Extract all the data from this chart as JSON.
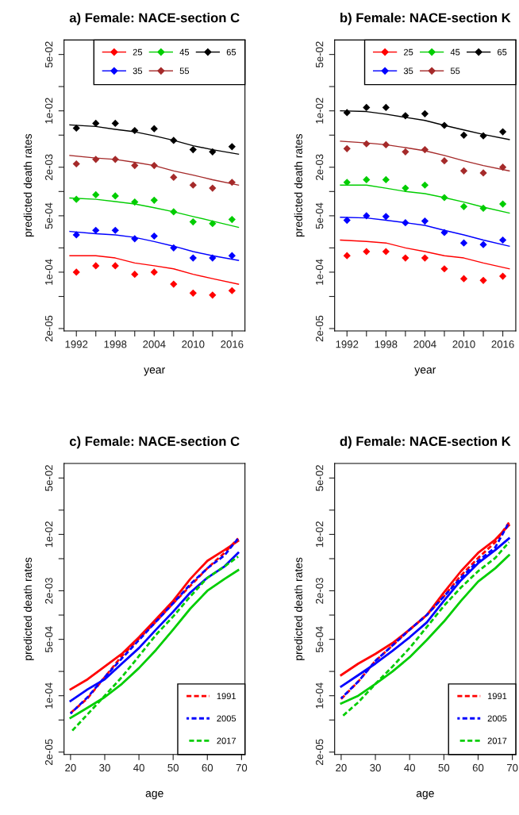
{
  "chart_data": [
    {
      "type": "line",
      "title": "a) Female: NACE-section C",
      "xlabel": "year",
      "ylabel": "predicted death rates",
      "log": "y",
      "legend": "top right",
      "xlim": [
        1990.1,
        2018
      ],
      "ylim": [
        1.87e-05,
        0.0757
      ],
      "xticks": [
        1992,
        {
          "value": 1995,
          "label": null
        },
        1998,
        {
          "value": 2001,
          "label": null
        },
        2004,
        {
          "value": 2007,
          "label": null
        },
        2010,
        {
          "value": 2013,
          "label": null
        },
        2016
      ],
      "yticks": [
        {
          "value": 0.05,
          "label": "5e-02"
        },
        {
          "value": 0.02,
          "label": null
        },
        {
          "value": 0.01,
          "label": "1e-02"
        },
        {
          "value": 0.005,
          "label": null
        },
        {
          "value": 0.002,
          "label": "2e-03"
        },
        {
          "value": 0.001,
          "label": null
        },
        {
          "value": 0.0005,
          "label": "5e-04"
        },
        {
          "value": 0.0002,
          "label": null
        },
        {
          "value": 0.0001,
          "label": "1e-04"
        },
        {
          "value": 5e-05,
          "label": null
        },
        {
          "value": 2e-05,
          "label": "2e-05"
        }
      ],
      "series": [
        {
          "name": "25",
          "type": "scatter",
          "marker": "diamond",
          "color": "#ff0000",
          "x": [
            1992,
            1995,
            1998,
            2001,
            2004,
            2007,
            2010,
            2013,
            2016
          ],
          "values": [
            0.0001,
            0.00012,
            0.00012,
            9.4e-05,
            0.0001,
            7.1e-05,
            5.5e-05,
            5.2e-05,
            5.9e-05
          ]
        },
        {
          "name": "35",
          "type": "scatter",
          "marker": "diamond",
          "color": "#0000ff",
          "x": [
            1992,
            1995,
            1998,
            2001,
            2004,
            2007,
            2010,
            2013,
            2016
          ],
          "values": [
            0.00029,
            0.00033,
            0.00033,
            0.00026,
            0.00028,
            0.0002,
            0.00015,
            0.00015,
            0.00016
          ]
        },
        {
          "name": "45",
          "type": "scatter",
          "marker": "diamond",
          "color": "#00cd00",
          "x": [
            1992,
            1995,
            1998,
            2001,
            2004,
            2007,
            2010,
            2013,
            2016
          ],
          "values": [
            0.0008,
            0.00091,
            0.00088,
            0.00074,
            0.00078,
            0.00056,
            0.00042,
            0.0004,
            0.00045
          ]
        },
        {
          "name": "55",
          "type": "scatter",
          "marker": "diamond",
          "color": "#a52a2a",
          "x": [
            1992,
            1995,
            1998,
            2001,
            2004,
            2007,
            2010,
            2013,
            2016
          ],
          "values": [
            0.0022,
            0.0025,
            0.0025,
            0.0021,
            0.0021,
            0.0015,
            0.0012,
            0.0011,
            0.0013
          ]
        },
        {
          "name": "65",
          "type": "scatter",
          "marker": "diamond",
          "color": "#000000",
          "x": [
            1992,
            1995,
            1998,
            2001,
            2004,
            2007,
            2010,
            2013,
            2016
          ],
          "values": [
            0.0061,
            0.007,
            0.007,
            0.0057,
            0.006,
            0.0043,
            0.0033,
            0.0031,
            0.0036
          ]
        },
        {
          "type": "line",
          "color": "#ff0000",
          "x": [
            1991,
            1995,
            1998,
            2001,
            2004,
            2007,
            2010,
            2013,
            2017
          ],
          "values": [
            0.00016,
            0.00016,
            0.00015,
            0.00013,
            0.00012,
            0.00011,
            9.4e-05,
            8.3e-05,
            7.1e-05
          ]
        },
        {
          "type": "line",
          "color": "#0000ff",
          "x": [
            1991,
            1995,
            1998,
            2001,
            2004,
            2007,
            2010,
            2013,
            2017
          ],
          "values": [
            0.00032,
            0.0003,
            0.00029,
            0.00027,
            0.00024,
            0.00021,
            0.00018,
            0.00016,
            0.00014
          ]
        },
        {
          "type": "line",
          "color": "#00cd00",
          "x": [
            1991,
            1995,
            1998,
            2001,
            2004,
            2007,
            2010,
            2013,
            2017
          ],
          "values": [
            0.00083,
            0.0008,
            0.00075,
            0.0007,
            0.00063,
            0.00056,
            0.00049,
            0.00043,
            0.00036
          ]
        },
        {
          "type": "line",
          "color": "#a52a2a",
          "x": [
            1991,
            1995,
            1998,
            2001,
            2004,
            2007,
            2010,
            2013,
            2017
          ],
          "values": [
            0.0028,
            0.0026,
            0.0025,
            0.0023,
            0.0021,
            0.0018,
            0.0016,
            0.0014,
            0.0012
          ]
        },
        {
          "type": "line",
          "color": "#000000",
          "x": [
            1991,
            1995,
            1998,
            2001,
            2004,
            2007,
            2010,
            2013,
            2017
          ],
          "values": [
            0.0067,
            0.0064,
            0.0059,
            0.0055,
            0.0049,
            0.0043,
            0.0037,
            0.0033,
            0.0029
          ]
        }
      ]
    },
    {
      "type": "line",
      "title": "b) Female: NACE-section K",
      "xlabel": "year",
      "ylabel": "predicted death rates",
      "log": "y",
      "legend": "top right",
      "xlim": [
        1990.1,
        2018
      ],
      "ylim": [
        1.87e-05,
        0.0757
      ],
      "xticks": [
        1992,
        {
          "value": 1995,
          "label": null
        },
        1998,
        {
          "value": 2001,
          "label": null
        },
        2004,
        {
          "value": 2007,
          "label": null
        },
        2010,
        {
          "value": 2013,
          "label": null
        },
        2016
      ],
      "yticks": [
        {
          "value": 0.05,
          "label": "5e-02"
        },
        {
          "value": 0.02,
          "label": null
        },
        {
          "value": 0.01,
          "label": "1e-02"
        },
        {
          "value": 0.005,
          "label": null
        },
        {
          "value": 0.002,
          "label": "2e-03"
        },
        {
          "value": 0.001,
          "label": null
        },
        {
          "value": 0.0005,
          "label": "5e-04"
        },
        {
          "value": 0.0002,
          "label": null
        },
        {
          "value": 0.0001,
          "label": "1e-04"
        },
        {
          "value": 5e-05,
          "label": null
        },
        {
          "value": 2e-05,
          "label": "2e-05"
        }
      ],
      "series": [
        {
          "name": "25",
          "type": "scatter",
          "marker": "diamond",
          "color": "#ff0000",
          "x": [
            1992,
            1995,
            1998,
            2001,
            2004,
            2007,
            2010,
            2013,
            2016
          ],
          "values": [
            0.00016,
            0.00018,
            0.00018,
            0.00015,
            0.00015,
            0.00011,
            8.3e-05,
            7.9e-05,
            8.9e-05
          ]
        },
        {
          "name": "35",
          "type": "scatter",
          "marker": "diamond",
          "color": "#0000ff",
          "x": [
            1992,
            1995,
            1998,
            2001,
            2004,
            2007,
            2010,
            2013,
            2016
          ],
          "values": [
            0.00044,
            0.0005,
            0.00049,
            0.00041,
            0.00043,
            0.00031,
            0.00023,
            0.00022,
            0.00025
          ]
        },
        {
          "name": "45",
          "type": "scatter",
          "marker": "diamond",
          "color": "#00cd00",
          "x": [
            1992,
            1995,
            1998,
            2001,
            2004,
            2007,
            2010,
            2013,
            2016
          ],
          "values": [
            0.0013,
            0.0014,
            0.0014,
            0.0011,
            0.0012,
            0.00084,
            0.00065,
            0.00062,
            0.0007
          ]
        },
        {
          "name": "55",
          "type": "scatter",
          "marker": "diamond",
          "color": "#a52a2a",
          "x": [
            1992,
            1995,
            1998,
            2001,
            2004,
            2007,
            2010,
            2013,
            2016
          ],
          "values": [
            0.0034,
            0.0039,
            0.0038,
            0.0031,
            0.0033,
            0.0024,
            0.0018,
            0.0017,
            0.002
          ]
        },
        {
          "name": "65",
          "type": "scatter",
          "marker": "diamond",
          "color": "#000000",
          "x": [
            1992,
            1995,
            1998,
            2001,
            2004,
            2007,
            2010,
            2013,
            2016
          ],
          "values": [
            0.0095,
            0.011,
            0.011,
            0.0087,
            0.0092,
            0.0066,
            0.005,
            0.0049,
            0.0055
          ]
        },
        {
          "type": "line",
          "color": "#ff0000",
          "x": [
            1991,
            1995,
            1998,
            2001,
            2004,
            2007,
            2010,
            2013,
            2017
          ],
          "values": [
            0.00025,
            0.00024,
            0.00023,
            0.0002,
            0.00018,
            0.00016,
            0.00015,
            0.00013,
            0.00011
          ]
        },
        {
          "type": "line",
          "color": "#0000ff",
          "x": [
            1991,
            1995,
            1998,
            2001,
            2004,
            2007,
            2010,
            2013,
            2017
          ],
          "values": [
            0.00048,
            0.00047,
            0.00044,
            0.00041,
            0.00038,
            0.00033,
            0.00029,
            0.00025,
            0.00021
          ]
        },
        {
          "type": "line",
          "color": "#00cd00",
          "x": [
            1991,
            1995,
            1998,
            2001,
            2004,
            2007,
            2010,
            2013,
            2017
          ],
          "values": [
            0.0012,
            0.0012,
            0.0011,
            0.001,
            0.00094,
            0.00084,
            0.00074,
            0.00064,
            0.00054
          ]
        },
        {
          "type": "line",
          "color": "#a52a2a",
          "x": [
            1991,
            1995,
            1998,
            2001,
            2004,
            2007,
            2010,
            2013,
            2017
          ],
          "values": [
            0.0042,
            0.004,
            0.0038,
            0.0035,
            0.0032,
            0.0028,
            0.0024,
            0.0021,
            0.0018
          ]
        },
        {
          "type": "line",
          "color": "#000000",
          "x": [
            1991,
            1995,
            1998,
            2001,
            2004,
            2007,
            2010,
            2013,
            2017
          ],
          "values": [
            0.01,
            0.0098,
            0.0091,
            0.0083,
            0.0076,
            0.0066,
            0.0058,
            0.0051,
            0.0044
          ]
        }
      ]
    },
    {
      "type": "line",
      "title": "c) Female: NACE-section C",
      "xlabel": "age",
      "ylabel": "predicted death rates",
      "log": "y",
      "legend": "bottom right",
      "xlim": [
        18.1,
        71
      ],
      "ylim": [
        1.87e-05,
        0.0757
      ],
      "xticks": [
        20,
        30,
        40,
        50,
        60,
        70
      ],
      "yticks": [
        {
          "value": 0.05,
          "label": "5e-02"
        },
        {
          "value": 0.02,
          "label": null
        },
        {
          "value": 0.01,
          "label": "1e-02"
        },
        {
          "value": 0.005,
          "label": null
        },
        {
          "value": 0.002,
          "label": "2e-03"
        },
        {
          "value": 0.001,
          "label": null
        },
        {
          "value": 0.0005,
          "label": "5e-04"
        },
        {
          "value": 0.0002,
          "label": null
        },
        {
          "value": 0.0001,
          "label": "1e-04"
        },
        {
          "value": 5e-05,
          "label": null
        },
        {
          "value": 2e-05,
          "label": "2e-05"
        }
      ],
      "series": [
        {
          "type": "line",
          "line_style": "solid",
          "color": "#ff0000",
          "x": [
            20,
            25,
            30,
            35,
            40,
            45,
            50,
            55,
            60,
            65,
            69
          ],
          "values": [
            0.00012,
            0.00016,
            0.00023,
            0.00033,
            0.00053,
            0.00089,
            0.0015,
            0.0028,
            0.0047,
            0.0064,
            0.0083
          ]
        },
        {
          "name": "1991",
          "type": "line",
          "line_style": "dashed",
          "color": "#ff0000",
          "x": [
            20,
            25,
            30,
            35,
            40,
            45,
            50,
            55,
            60,
            65,
            69
          ],
          "values": [
            6.1e-05,
            9.3e-05,
            0.00017,
            0.00031,
            0.00051,
            0.00083,
            0.0014,
            0.0023,
            0.0038,
            0.0059,
            0.0089
          ]
        },
        {
          "type": "line",
          "line_style": "solid",
          "color": "#0000ff",
          "x": [
            20,
            25,
            30,
            35,
            40,
            45,
            50,
            55,
            60,
            65,
            69
          ],
          "values": [
            8.6e-05,
            0.00012,
            0.00016,
            0.00025,
            0.00039,
            0.00066,
            0.0011,
            0.0019,
            0.0029,
            0.004,
            0.0059
          ]
        },
        {
          "name": "2005",
          "type": "line",
          "line_style": "dashed",
          "color": "#0000ff",
          "x": [
            20,
            25,
            30,
            35,
            40,
            45,
            50,
            55,
            60,
            65,
            69
          ],
          "values": [
            6e-05,
            9.6e-05,
            0.00017,
            0.00029,
            0.00049,
            0.00083,
            0.0014,
            0.0024,
            0.0038,
            0.0055,
            0.0089
          ]
        },
        {
          "type": "line",
          "line_style": "solid",
          "color": "#00cd00",
          "x": [
            20,
            25,
            30,
            35,
            40,
            45,
            50,
            55,
            60,
            65,
            69
          ],
          "values": [
            5.3e-05,
            7.1e-05,
            9.6e-05,
            0.00014,
            0.00022,
            0.00037,
            0.00066,
            0.0012,
            0.002,
            0.0028,
            0.0036
          ]
        },
        {
          "name": "2017",
          "type": "line",
          "line_style": "dashed",
          "color": "#00cd00",
          "x": [
            20,
            25,
            30,
            35,
            40,
            45,
            50,
            55,
            60,
            65,
            69
          ],
          "values": [
            3.5e-05,
            5.9e-05,
            0.0001,
            0.00017,
            0.00031,
            0.00057,
            0.00096,
            0.0017,
            0.0029,
            0.004,
            0.0053
          ]
        }
      ]
    },
    {
      "type": "line",
      "title": "d) Female: NACE-section K",
      "xlabel": "age",
      "ylabel": "predicted death rates",
      "log": "y",
      "legend": "bottom right",
      "xlim": [
        18.1,
        71
      ],
      "ylim": [
        1.87e-05,
        0.0757
      ],
      "xticks": [
        20,
        30,
        40,
        50,
        60,
        70
      ],
      "yticks": [
        {
          "value": 0.05,
          "label": "5e-02"
        },
        {
          "value": 0.02,
          "label": null
        },
        {
          "value": 0.01,
          "label": "1e-02"
        },
        {
          "value": 0.005,
          "label": null
        },
        {
          "value": 0.002,
          "label": "2e-03"
        },
        {
          "value": 0.001,
          "label": null
        },
        {
          "value": 0.0005,
          "label": "5e-04"
        },
        {
          "value": 0.0002,
          "label": null
        },
        {
          "value": 0.0001,
          "label": "1e-04"
        },
        {
          "value": 5e-05,
          "label": null
        },
        {
          "value": 2e-05,
          "label": "2e-05"
        }
      ],
      "series": [
        {
          "type": "line",
          "line_style": "solid",
          "color": "#ff0000",
          "x": [
            20,
            25,
            30,
            35,
            40,
            45,
            50,
            55,
            60,
            65,
            69
          ],
          "values": [
            0.00018,
            0.00025,
            0.00033,
            0.00045,
            0.00066,
            0.001,
            0.0019,
            0.0035,
            0.0059,
            0.0086,
            0.013
          ]
        },
        {
          "name": "1991",
          "type": "line",
          "line_style": "dashed",
          "color": "#ff0000",
          "x": [
            20,
            25,
            30,
            35,
            40,
            45,
            50,
            55,
            60,
            65,
            69
          ],
          "values": [
            9.1e-05,
            0.00015,
            0.00027,
            0.00042,
            0.00066,
            0.001,
            0.0017,
            0.0031,
            0.0051,
            0.008,
            0.014
          ]
        },
        {
          "type": "line",
          "line_style": "solid",
          "color": "#0000ff",
          "x": [
            20,
            25,
            30,
            35,
            40,
            45,
            50,
            55,
            60,
            65,
            69
          ],
          "values": [
            0.00013,
            0.00018,
            0.00025,
            0.00036,
            0.00053,
            0.00081,
            0.0015,
            0.0027,
            0.0044,
            0.0064,
            0.0089
          ]
        },
        {
          "name": "2005",
          "type": "line",
          "line_style": "dashed",
          "color": "#0000ff",
          "x": [
            20,
            25,
            30,
            35,
            40,
            45,
            50,
            55,
            60,
            65,
            69
          ],
          "values": [
            9.3e-05,
            0.00015,
            0.00027,
            0.00042,
            0.00066,
            0.001,
            0.0017,
            0.0029,
            0.0047,
            0.0069,
            0.014
          ]
        },
        {
          "type": "line",
          "line_style": "solid",
          "color": "#00cd00",
          "x": [
            20,
            25,
            30,
            35,
            40,
            45,
            50,
            55,
            60,
            65,
            69
          ],
          "values": [
            8e-05,
            0.0001,
            0.00014,
            0.0002,
            0.0003,
            0.00049,
            0.00083,
            0.0015,
            0.0026,
            0.0038,
            0.0055
          ]
        },
        {
          "name": "2017",
          "type": "line",
          "line_style": "dashed",
          "color": "#00cd00",
          "x": [
            20,
            25,
            30,
            35,
            40,
            45,
            50,
            55,
            60,
            65,
            69
          ],
          "values": [
            5.4e-05,
            8.3e-05,
            0.00014,
            0.00023,
            0.00039,
            0.00071,
            0.0013,
            0.0022,
            0.0035,
            0.0051,
            0.008
          ]
        }
      ]
    }
  ]
}
